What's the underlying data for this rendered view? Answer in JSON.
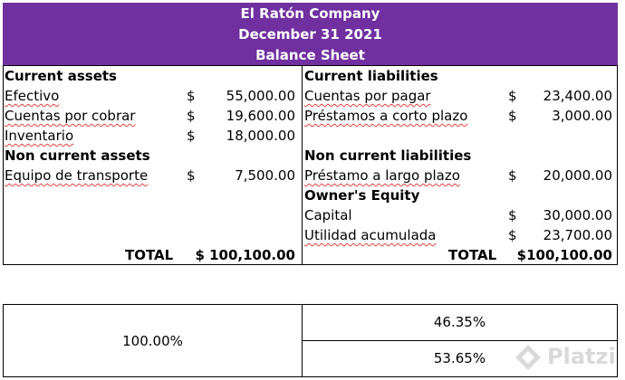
{
  "header": {
    "company": "El Ratón Company",
    "date": "December 31 2021",
    "title": "Balance Sheet"
  },
  "assets": {
    "current_heading": "Current assets",
    "current": [
      {
        "label": "Efectivo",
        "currency": "$",
        "amount": "55,000.00"
      },
      {
        "label": "Cuentas por cobrar",
        "currency": "$",
        "amount": "19,600.00"
      },
      {
        "label": "Inventario",
        "currency": "$",
        "amount": "18,000.00"
      }
    ],
    "noncurrent_heading": "Non current assets",
    "noncurrent": [
      {
        "label": "Equipo de transporte",
        "currency": "$",
        "amount": "7,500.00"
      }
    ],
    "total_label": "TOTAL",
    "total_value": "$ 100,100.00"
  },
  "liabilities": {
    "current_heading": "Current liabilities",
    "current": [
      {
        "label": "Cuentas por pagar",
        "currency": "$",
        "amount": "23,400.00"
      },
      {
        "label": "Préstamos a corto plazo",
        "currency": "$",
        "amount": "3,000.00"
      }
    ],
    "noncurrent_heading": "Non current liabilities",
    "noncurrent": [
      {
        "label": "Préstamo a largo plazo",
        "currency": "$",
        "amount": "20,000.00"
      }
    ],
    "equity_heading": "Owner's Equity",
    "equity": [
      {
        "label": "Capital",
        "currency": "$",
        "amount": "30,000.00"
      },
      {
        "label": "Utilidad acumulada",
        "currency": "$",
        "amount": "23,700.00"
      }
    ],
    "total_label": "TOTAL",
    "total_value": "$100,100.00"
  },
  "percent_table": {
    "assets_pct": "100.00%",
    "liabilities_pct": "46.35%",
    "equity_pct": "53.65%"
  },
  "watermark": "Platzi",
  "colors": {
    "header_bg": "#7030a0",
    "spellcheck": "#e04040"
  }
}
